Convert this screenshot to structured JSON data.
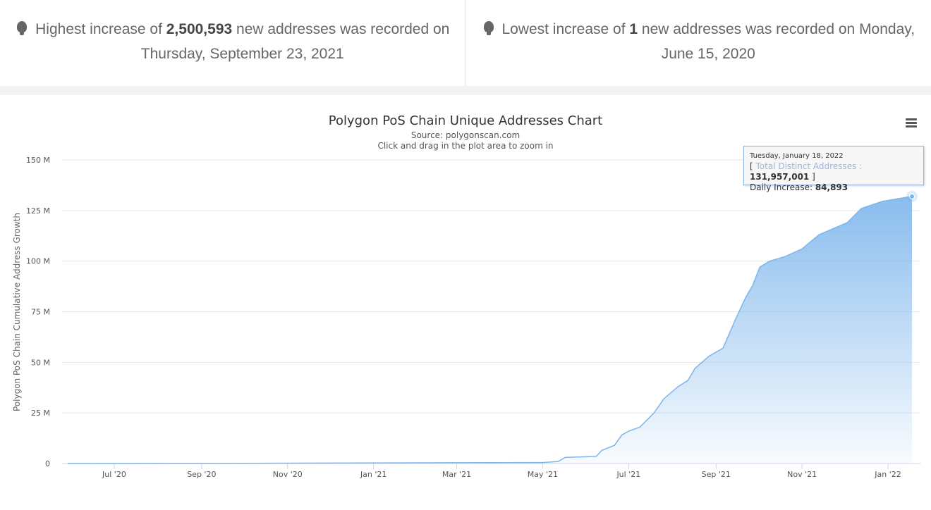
{
  "insights": [
    {
      "prefix": "Highest increase of ",
      "value": "2,500,593",
      "suffix": " new addresses was recorded on",
      "date": "Thursday, September 23, 2021",
      "icon": "lightbulb-icon"
    },
    {
      "prefix": "Lowest increase of ",
      "value": "1",
      "suffix": " new addresses was recorded on Monday,",
      "date": "June 15, 2020",
      "icon": "lightbulb-icon"
    }
  ],
  "tooltip": {
    "date": "Tuesday, January 18, 2022",
    "series": "Total Distinct Addresses",
    "value": "131,957,001",
    "daily_label": "Daily Increase: ",
    "daily_value": "84,893"
  },
  "chart_data": {
    "type": "area",
    "title": "Polygon PoS Chain Unique Addresses Chart",
    "subtitle": "Source: polygonscan.com",
    "hint": "Click and drag in the plot area to zoom in",
    "ylabel": "Polygon PoS Chain Cumulative Address Growth",
    "ylim": [
      0,
      150
    ],
    "yticks": [
      {
        "v": 0,
        "label": "0"
      },
      {
        "v": 25,
        "label": "25 M"
      },
      {
        "v": 50,
        "label": "50 M"
      },
      {
        "v": 75,
        "label": "75 M"
      },
      {
        "v": 100,
        "label": "100 M"
      },
      {
        "v": 125,
        "label": "125 M"
      },
      {
        "v": 150,
        "label": "150 M"
      }
    ],
    "x_unit": "days since 2020-07-01",
    "xlim": [
      -37,
      572
    ],
    "xticks": [
      {
        "v": 0,
        "label": "Jul '20"
      },
      {
        "v": 62,
        "label": "Sep '20"
      },
      {
        "v": 123,
        "label": "Nov '20"
      },
      {
        "v": 184,
        "label": "Jan '21"
      },
      {
        "v": 243,
        "label": "Mar '21"
      },
      {
        "v": 304,
        "label": "May '21"
      },
      {
        "v": 365,
        "label": "Jul '21"
      },
      {
        "v": 427,
        "label": "Sep '21"
      },
      {
        "v": 488,
        "label": "Nov '21"
      },
      {
        "v": 549,
        "label": "Jan '22"
      }
    ],
    "series": [
      {
        "name": "Total Distinct Addresses",
        "color": "#7cb5ec",
        "points": [
          [
            -33,
            0
          ],
          [
            100,
            0.1
          ],
          [
            200,
            0.3
          ],
          [
            304,
            0.5
          ],
          [
            315,
            1
          ],
          [
            320,
            3
          ],
          [
            342,
            3.5
          ],
          [
            346,
            6.5
          ],
          [
            355,
            9
          ],
          [
            360,
            14
          ],
          [
            365,
            16
          ],
          [
            373,
            18
          ],
          [
            383,
            25
          ],
          [
            390,
            32
          ],
          [
            400,
            38
          ],
          [
            407,
            41
          ],
          [
            412,
            47
          ],
          [
            422,
            53
          ],
          [
            432,
            57
          ],
          [
            440,
            70
          ],
          [
            448,
            82
          ],
          [
            453,
            88
          ],
          [
            458,
            97
          ],
          [
            465,
            100
          ],
          [
            475,
            102
          ],
          [
            488,
            106
          ],
          [
            500,
            113
          ],
          [
            510,
            116
          ],
          [
            520,
            119
          ],
          [
            530,
            126
          ],
          [
            545,
            129.5
          ],
          [
            566,
            131.957
          ]
        ]
      }
    ]
  }
}
